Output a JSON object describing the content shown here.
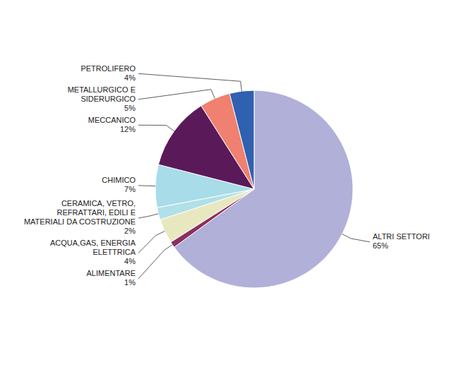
{
  "chart_data": {
    "type": "pie",
    "categories": [
      "ALTRI SETTORI\n65%",
      "ALIMENTARE\n1%",
      "ACQUA,GAS, ENERGIA\nELETTRICA\n4%",
      "CERAMICA, VETRO,\nREFRATTARI, EDILI E\nMATERIALI DA COSTRUZIONE\n2%",
      "CHIMICO\n7%",
      "MECCANICO\n12%",
      "METALLURGICO E\nSIDERURGICO\n5%",
      "PETROLIFERO\n4%"
    ],
    "values": [
      65,
      1,
      4,
      2,
      7,
      12,
      5,
      4
    ],
    "colors": [
      "#b0b0d8",
      "#8b3060",
      "#e8e8c0",
      "#b0e0e8",
      "#a8dce8",
      "#5a1a5a",
      "#f08070",
      "#3060b0"
    ]
  }
}
